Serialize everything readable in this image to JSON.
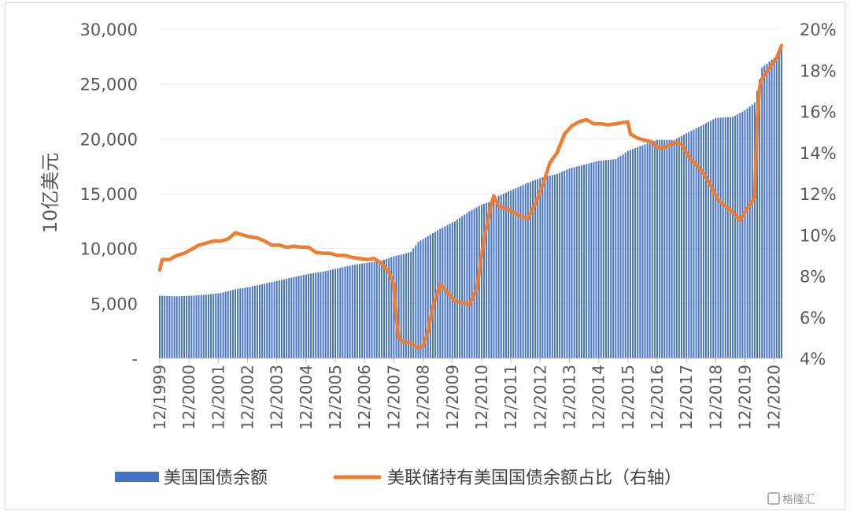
{
  "watermark": "格隆汇",
  "chart_data": {
    "type": "bar+line",
    "ylabel": "10亿美元",
    "ylim": [
      0,
      30000
    ],
    "y_ticks": [
      "-",
      "5,000",
      "10,000",
      "15,000",
      "20,000",
      "25,000",
      "30,000"
    ],
    "y2lim": [
      4,
      20
    ],
    "y2_ticks": [
      "4%",
      "6%",
      "8%",
      "10%",
      "12%",
      "14%",
      "16%",
      "18%",
      "20%"
    ],
    "x_ticks": [
      "12/1999",
      "12/2000",
      "12/2001",
      "12/2002",
      "12/2003",
      "12/2004",
      "12/2005",
      "12/2006",
      "12/2007",
      "12/2008",
      "12/2009",
      "12/2010",
      "12/2011",
      "12/2012",
      "12/2013",
      "12/2014",
      "12/2015",
      "12/2016",
      "12/2017",
      "12/2018",
      "12/2019",
      "12/2020"
    ],
    "x_start": 1999.917,
    "x_end": 2021.167,
    "legend": {
      "position": "bottom"
    },
    "series": [
      {
        "name": "美国国债余额",
        "kind": "bar",
        "color": "#4472C4",
        "points": [
          [
            1999.917,
            5700
          ],
          [
            2000.5,
            5650
          ],
          [
            2001.0,
            5700
          ],
          [
            2001.5,
            5800
          ],
          [
            2002.0,
            5950
          ],
          [
            2002.5,
            6300
          ],
          [
            2003.0,
            6500
          ],
          [
            2003.5,
            6800
          ],
          [
            2004.0,
            7100
          ],
          [
            2004.5,
            7400
          ],
          [
            2005.0,
            7700
          ],
          [
            2005.5,
            7900
          ],
          [
            2006.0,
            8200
          ],
          [
            2006.5,
            8500
          ],
          [
            2007.0,
            8700
          ],
          [
            2007.5,
            8900
          ],
          [
            2007.917,
            9300
          ],
          [
            2008.25,
            9500
          ],
          [
            2008.5,
            9700
          ],
          [
            2008.75,
            10600
          ],
          [
            2009.0,
            11000
          ],
          [
            2009.5,
            11800
          ],
          [
            2010.0,
            12500
          ],
          [
            2010.5,
            13400
          ],
          [
            2010.917,
            14000
          ],
          [
            2011.25,
            14300
          ],
          [
            2011.5,
            14800
          ],
          [
            2012.0,
            15400
          ],
          [
            2012.5,
            16000
          ],
          [
            2013.0,
            16500
          ],
          [
            2013.5,
            16800
          ],
          [
            2013.917,
            17300
          ],
          [
            2014.5,
            17700
          ],
          [
            2014.917,
            18000
          ],
          [
            2015.5,
            18150
          ],
          [
            2015.917,
            18900
          ],
          [
            2016.5,
            19500
          ],
          [
            2016.917,
            19900
          ],
          [
            2017.5,
            19900
          ],
          [
            2017.917,
            20500
          ],
          [
            2018.5,
            21300
          ],
          [
            2018.917,
            21900
          ],
          [
            2019.5,
            22000
          ],
          [
            2019.917,
            22600
          ],
          [
            2020.25,
            23300
          ],
          [
            2020.5,
            26500
          ],
          [
            2020.917,
            27400
          ],
          [
            2021.167,
            28200
          ]
        ]
      },
      {
        "name": "美联储持有美国国债余额占比（右轴）",
        "kind": "line",
        "color": "#ED7D31",
        "points": [
          [
            1999.917,
            8.3
          ],
          [
            2000.0,
            8.8
          ],
          [
            2000.25,
            8.8
          ],
          [
            2000.5,
            9.0
          ],
          [
            2000.75,
            9.1
          ],
          [
            2001.0,
            9.3
          ],
          [
            2001.25,
            9.5
          ],
          [
            2001.5,
            9.6
          ],
          [
            2001.75,
            9.7
          ],
          [
            2002.0,
            9.7
          ],
          [
            2002.25,
            9.8
          ],
          [
            2002.5,
            10.1
          ],
          [
            2002.75,
            10.0
          ],
          [
            2003.0,
            9.9
          ],
          [
            2003.25,
            9.85
          ],
          [
            2003.5,
            9.7
          ],
          [
            2003.75,
            9.5
          ],
          [
            2004.0,
            9.5
          ],
          [
            2004.25,
            9.4
          ],
          [
            2004.5,
            9.45
          ],
          [
            2004.75,
            9.4
          ],
          [
            2005.0,
            9.4
          ],
          [
            2005.25,
            9.15
          ],
          [
            2005.5,
            9.1
          ],
          [
            2005.75,
            9.1
          ],
          [
            2006.0,
            9.0
          ],
          [
            2006.25,
            9.0
          ],
          [
            2006.5,
            8.9
          ],
          [
            2006.75,
            8.85
          ],
          [
            2007.0,
            8.8
          ],
          [
            2007.25,
            8.85
          ],
          [
            2007.5,
            8.6
          ],
          [
            2007.75,
            8.2
          ],
          [
            2007.917,
            7.6
          ],
          [
            2008.0,
            6.0
          ],
          [
            2008.083,
            5.0
          ],
          [
            2008.25,
            4.8
          ],
          [
            2008.5,
            4.75
          ],
          [
            2008.75,
            4.5
          ],
          [
            2008.917,
            4.6
          ],
          [
            2009.083,
            5.3
          ],
          [
            2009.25,
            6.5
          ],
          [
            2009.5,
            7.6
          ],
          [
            2009.75,
            7.2
          ],
          [
            2010.0,
            6.8
          ],
          [
            2010.25,
            6.7
          ],
          [
            2010.5,
            6.6
          ],
          [
            2010.75,
            7.4
          ],
          [
            2011.0,
            9.8
          ],
          [
            2011.25,
            11.5
          ],
          [
            2011.333,
            11.9
          ],
          [
            2011.5,
            11.4
          ],
          [
            2011.75,
            11.3
          ],
          [
            2012.0,
            11.1
          ],
          [
            2012.25,
            10.9
          ],
          [
            2012.5,
            10.8
          ],
          [
            2012.75,
            11.5
          ],
          [
            2013.0,
            12.4
          ],
          [
            2013.25,
            13.5
          ],
          [
            2013.5,
            14.0
          ],
          [
            2013.75,
            14.9
          ],
          [
            2014.0,
            15.3
          ],
          [
            2014.25,
            15.5
          ],
          [
            2014.5,
            15.6
          ],
          [
            2014.75,
            15.4
          ],
          [
            2015.0,
            15.4
          ],
          [
            2015.25,
            15.35
          ],
          [
            2015.5,
            15.4
          ],
          [
            2015.917,
            15.5
          ],
          [
            2016.0,
            14.9
          ],
          [
            2016.25,
            14.7
          ],
          [
            2016.5,
            14.6
          ],
          [
            2016.75,
            14.5
          ],
          [
            2017.0,
            14.2
          ],
          [
            2017.25,
            14.3
          ],
          [
            2017.5,
            14.5
          ],
          [
            2017.75,
            14.4
          ],
          [
            2018.0,
            13.8
          ],
          [
            2018.25,
            13.4
          ],
          [
            2018.5,
            13.0
          ],
          [
            2018.75,
            12.4
          ],
          [
            2019.0,
            11.7
          ],
          [
            2019.25,
            11.4
          ],
          [
            2019.5,
            11.1
          ],
          [
            2019.75,
            10.7
          ],
          [
            2020.0,
            11.3
          ],
          [
            2020.25,
            11.8
          ],
          [
            2020.333,
            15.5
          ],
          [
            2020.417,
            17.2
          ],
          [
            2020.5,
            17.6
          ],
          [
            2020.75,
            18.1
          ],
          [
            2021.0,
            18.6
          ],
          [
            2021.167,
            19.2
          ]
        ]
      }
    ]
  }
}
